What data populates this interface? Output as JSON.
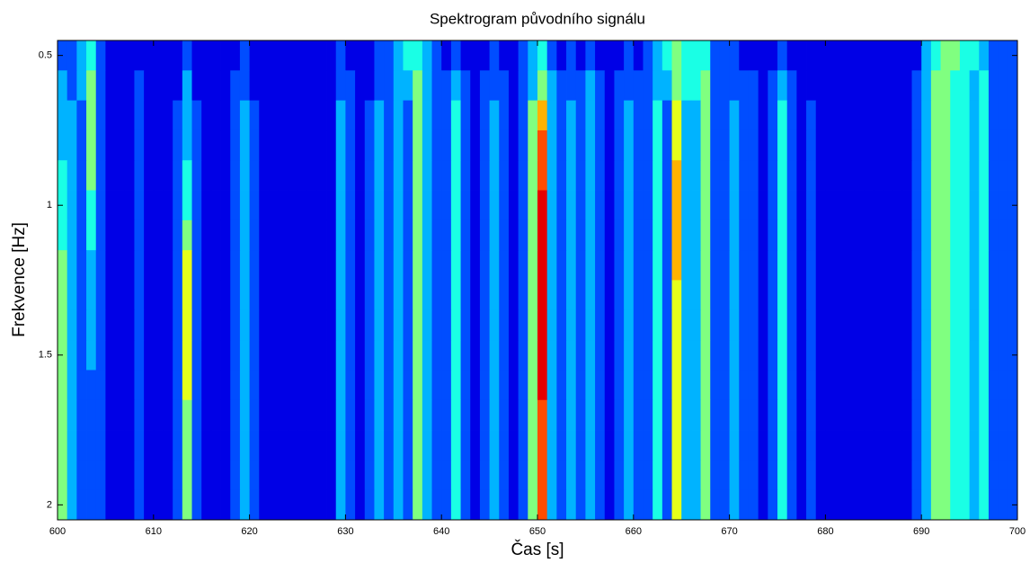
{
  "chart_data": {
    "type": "heatmap",
    "title": "Spektrogram původního signálu",
    "xlabel": "Čas [s]",
    "ylabel": "Frekvence [Hz]",
    "xlim": [
      600,
      700
    ],
    "xticks": [
      600,
      610,
      620,
      630,
      640,
      650,
      660,
      670,
      680,
      690,
      700
    ],
    "ylim": [
      0.45,
      2.05
    ],
    "yticks": [
      0.5,
      1,
      1.5,
      2
    ],
    "y_reversed": true,
    "colormap": "jet",
    "x": [
      600.5,
      601.5,
      602.5,
      603.5,
      604.5,
      605.5,
      606.5,
      607.5,
      608.5,
      609.5,
      610.5,
      611.5,
      612.5,
      613.5,
      614.5,
      615.5,
      616.5,
      617.5,
      618.5,
      619.5,
      620.5,
      621.5,
      622.5,
      623.5,
      624.5,
      625.5,
      626.5,
      627.5,
      628.5,
      629.5,
      630.5,
      631.5,
      632.5,
      633.5,
      634.5,
      635.5,
      636.5,
      637.5,
      638.5,
      639.5,
      640.5,
      641.5,
      642.5,
      643.5,
      644.5,
      645.5,
      646.5,
      647.5,
      648.5,
      649.5,
      650.5,
      651.5,
      652.5,
      653.5,
      654.5,
      655.5,
      656.5,
      657.5,
      658.5,
      659.5,
      660.5,
      661.5,
      662.5,
      663.5,
      664.5,
      665.5,
      666.5,
      667.5,
      668.5,
      669.5,
      670.5,
      671.5,
      672.5,
      673.5,
      674.5,
      675.5,
      676.5,
      677.5,
      678.5,
      679.5,
      680.5,
      681.5,
      682.5,
      683.5,
      684.5,
      685.5,
      686.5,
      687.5,
      688.5,
      689.5,
      690.5,
      691.5,
      692.5,
      693.5,
      694.5,
      695.5,
      696.5,
      697.5,
      698.5,
      699.5
    ],
    "y": [
      0.5,
      0.6,
      0.7,
      0.8,
      0.9,
      1.0,
      1.1,
      1.2,
      1.3,
      1.4,
      1.5,
      1.6,
      1.7,
      1.8,
      1.9,
      2.0
    ],
    "z": [
      [
        2,
        2,
        3,
        4,
        2,
        1,
        1,
        1,
        1,
        1,
        1,
        1,
        1,
        2,
        1,
        1,
        1,
        1,
        1,
        2,
        1,
        1,
        1,
        1,
        1,
        1,
        1,
        1,
        1,
        2,
        1,
        1,
        1,
        2,
        2,
        3,
        4,
        4,
        3,
        2,
        1,
        2,
        1,
        1,
        1,
        2,
        1,
        1,
        2,
        3,
        4,
        2,
        1,
        2,
        1,
        2,
        1,
        1,
        1,
        2,
        1,
        2,
        3,
        4,
        5,
        4,
        4,
        4,
        2,
        2,
        2,
        1,
        1,
        1,
        1,
        2,
        1,
        1,
        1,
        1,
        1,
        1,
        1,
        1,
        1,
        1,
        1,
        1,
        1,
        1,
        3,
        4,
        5,
        5,
        4,
        4,
        3,
        2,
        2,
        2
      ],
      [
        3,
        2,
        3,
        5,
        2,
        1,
        1,
        1,
        2,
        1,
        1,
        1,
        1,
        3,
        1,
        1,
        1,
        1,
        2,
        2,
        1,
        1,
        1,
        1,
        1,
        1,
        1,
        1,
        1,
        2,
        2,
        1,
        1,
        2,
        2,
        3,
        3,
        5,
        3,
        2,
        2,
        3,
        2,
        1,
        2,
        2,
        2,
        1,
        2,
        3,
        5,
        3,
        2,
        2,
        2,
        3,
        2,
        1,
        2,
        2,
        2,
        2,
        3,
        3,
        5,
        4,
        4,
        5,
        2,
        2,
        2,
        2,
        2,
        1,
        2,
        3,
        2,
        1,
        1,
        1,
        1,
        1,
        1,
        1,
        1,
        1,
        1,
        1,
        1,
        2,
        3,
        5,
        5,
        4,
        4,
        3,
        4,
        2,
        2,
        2
      ],
      [
        3,
        3,
        2,
        5,
        2,
        1,
        1,
        1,
        2,
        1,
        1,
        1,
        2,
        3,
        2,
        1,
        1,
        1,
        2,
        3,
        2,
        1,
        1,
        1,
        1,
        1,
        1,
        1,
        1,
        3,
        2,
        1,
        2,
        3,
        2,
        3,
        2,
        5,
        3,
        2,
        2,
        4,
        2,
        1,
        2,
        3,
        2,
        1,
        2,
        5,
        7,
        3,
        2,
        3,
        2,
        3,
        2,
        1,
        2,
        3,
        2,
        2,
        4,
        2,
        6,
        3,
        3,
        5,
        2,
        2,
        3,
        2,
        2,
        1,
        2,
        4,
        2,
        1,
        2,
        1,
        1,
        1,
        1,
        1,
        1,
        1,
        1,
        1,
        1,
        2,
        3,
        5,
        5,
        4,
        4,
        3,
        4,
        2,
        2,
        2
      ],
      [
        3,
        3,
        2,
        5,
        2,
        1,
        1,
        1,
        2,
        1,
        1,
        1,
        2,
        3,
        2,
        1,
        1,
        1,
        2,
        3,
        2,
        1,
        1,
        1,
        1,
        1,
        1,
        1,
        1,
        3,
        2,
        1,
        2,
        3,
        2,
        3,
        2,
        5,
        3,
        2,
        2,
        4,
        2,
        1,
        2,
        3,
        2,
        1,
        2,
        5,
        8,
        3,
        2,
        3,
        2,
        3,
        2,
        1,
        2,
        3,
        2,
        2,
        4,
        2,
        6,
        3,
        3,
        5,
        2,
        2,
        3,
        2,
        2,
        1,
        2,
        4,
        2,
        1,
        2,
        1,
        1,
        1,
        1,
        1,
        1,
        1,
        1,
        1,
        1,
        2,
        3,
        5,
        5,
        4,
        4,
        3,
        4,
        2,
        2,
        2
      ],
      [
        4,
        3,
        2,
        5,
        2,
        1,
        1,
        1,
        2,
        1,
        1,
        1,
        2,
        4,
        2,
        1,
        1,
        1,
        2,
        3,
        2,
        1,
        1,
        1,
        1,
        1,
        1,
        1,
        1,
        3,
        2,
        1,
        2,
        3,
        2,
        3,
        2,
        5,
        3,
        2,
        2,
        4,
        2,
        1,
        2,
        3,
        2,
        1,
        2,
        5,
        8,
        3,
        2,
        3,
        2,
        3,
        2,
        1,
        2,
        3,
        2,
        2,
        4,
        2,
        7,
        3,
        3,
        5,
        2,
        2,
        3,
        2,
        2,
        1,
        2,
        4,
        2,
        1,
        2,
        1,
        1,
        1,
        1,
        1,
        1,
        1,
        1,
        1,
        1,
        2,
        3,
        5,
        5,
        4,
        4,
        3,
        4,
        2,
        2,
        2
      ],
      [
        4,
        3,
        2,
        4,
        2,
        1,
        1,
        1,
        2,
        1,
        1,
        1,
        2,
        4,
        2,
        1,
        1,
        1,
        2,
        3,
        2,
        1,
        1,
        1,
        1,
        1,
        1,
        1,
        1,
        3,
        2,
        1,
        2,
        3,
        2,
        3,
        2,
        5,
        3,
        2,
        2,
        4,
        2,
        1,
        2,
        3,
        2,
        1,
        2,
        5,
        9,
        3,
        2,
        3,
        2,
        3,
        2,
        1,
        2,
        3,
        2,
        2,
        4,
        2,
        7,
        3,
        3,
        5,
        2,
        2,
        3,
        2,
        2,
        1,
        2,
        4,
        2,
        1,
        2,
        1,
        1,
        1,
        1,
        1,
        1,
        1,
        1,
        1,
        1,
        2,
        3,
        5,
        5,
        4,
        4,
        3,
        4,
        2,
        2,
        2
      ],
      [
        4,
        3,
        2,
        4,
        2,
        1,
        1,
        1,
        2,
        1,
        1,
        1,
        2,
        5,
        2,
        1,
        1,
        1,
        2,
        3,
        2,
        1,
        1,
        1,
        1,
        1,
        1,
        1,
        1,
        3,
        2,
        1,
        2,
        3,
        2,
        3,
        2,
        5,
        3,
        2,
        2,
        4,
        2,
        1,
        2,
        3,
        2,
        1,
        2,
        5,
        9,
        3,
        2,
        3,
        2,
        3,
        2,
        1,
        2,
        3,
        2,
        2,
        4,
        2,
        7,
        3,
        3,
        5,
        2,
        2,
        3,
        2,
        2,
        1,
        2,
        4,
        2,
        1,
        2,
        1,
        1,
        1,
        1,
        1,
        1,
        1,
        1,
        1,
        1,
        2,
        3,
        5,
        5,
        4,
        4,
        3,
        4,
        2,
        2,
        2
      ],
      [
        5,
        3,
        2,
        3,
        2,
        1,
        1,
        1,
        2,
        1,
        1,
        1,
        2,
        6,
        2,
        1,
        1,
        1,
        2,
        3,
        2,
        1,
        1,
        1,
        1,
        1,
        1,
        1,
        1,
        3,
        2,
        1,
        2,
        3,
        2,
        3,
        2,
        5,
        3,
        2,
        2,
        4,
        2,
        1,
        2,
        3,
        2,
        1,
        2,
        5,
        9,
        3,
        2,
        3,
        2,
        3,
        2,
        1,
        2,
        3,
        2,
        2,
        4,
        2,
        7,
        3,
        3,
        5,
        2,
        2,
        3,
        2,
        2,
        1,
        2,
        4,
        2,
        1,
        2,
        1,
        1,
        1,
        1,
        1,
        1,
        1,
        1,
        1,
        1,
        2,
        3,
        5,
        5,
        4,
        4,
        3,
        4,
        2,
        2,
        2
      ],
      [
        5,
        3,
        2,
        3,
        2,
        1,
        1,
        1,
        2,
        1,
        1,
        1,
        2,
        6,
        2,
        1,
        1,
        1,
        2,
        3,
        2,
        1,
        1,
        1,
        1,
        1,
        1,
        1,
        1,
        3,
        2,
        1,
        2,
        3,
        2,
        3,
        2,
        5,
        3,
        2,
        2,
        4,
        2,
        1,
        2,
        3,
        2,
        1,
        2,
        5,
        9,
        3,
        2,
        3,
        2,
        3,
        2,
        1,
        2,
        3,
        2,
        2,
        4,
        2,
        6,
        3,
        3,
        5,
        2,
        2,
        3,
        2,
        2,
        1,
        2,
        4,
        2,
        1,
        2,
        1,
        1,
        1,
        1,
        1,
        1,
        1,
        1,
        1,
        1,
        2,
        3,
        5,
        5,
        4,
        4,
        3,
        4,
        2,
        2,
        2
      ],
      [
        5,
        3,
        2,
        3,
        2,
        1,
        1,
        1,
        2,
        1,
        1,
        1,
        2,
        6,
        2,
        1,
        1,
        1,
        2,
        3,
        2,
        1,
        1,
        1,
        1,
        1,
        1,
        1,
        1,
        3,
        2,
        1,
        2,
        3,
        2,
        3,
        2,
        5,
        3,
        2,
        2,
        4,
        2,
        1,
        2,
        3,
        2,
        1,
        2,
        5,
        9,
        3,
        2,
        3,
        2,
        3,
        2,
        1,
        2,
        3,
        2,
        2,
        4,
        2,
        6,
        3,
        3,
        5,
        2,
        2,
        3,
        2,
        2,
        1,
        2,
        4,
        2,
        1,
        2,
        1,
        1,
        1,
        1,
        1,
        1,
        1,
        1,
        1,
        1,
        2,
        3,
        5,
        5,
        4,
        4,
        3,
        4,
        2,
        2,
        2
      ],
      [
        5,
        3,
        2,
        3,
        2,
        1,
        1,
        1,
        2,
        1,
        1,
        1,
        2,
        6,
        2,
        1,
        1,
        1,
        2,
        3,
        2,
        1,
        1,
        1,
        1,
        1,
        1,
        1,
        1,
        3,
        2,
        1,
        2,
        3,
        2,
        3,
        2,
        5,
        3,
        2,
        2,
        4,
        2,
        1,
        2,
        3,
        2,
        1,
        2,
        5,
        9,
        3,
        2,
        3,
        2,
        3,
        2,
        1,
        2,
        3,
        2,
        2,
        4,
        2,
        6,
        3,
        3,
        5,
        2,
        2,
        3,
        2,
        2,
        1,
        2,
        4,
        2,
        1,
        2,
        1,
        1,
        1,
        1,
        1,
        1,
        1,
        1,
        1,
        1,
        2,
        3,
        5,
        5,
        4,
        4,
        3,
        4,
        2,
        2,
        2
      ],
      [
        5,
        3,
        2,
        2,
        2,
        1,
        1,
        1,
        2,
        1,
        1,
        1,
        2,
        6,
        2,
        1,
        1,
        1,
        2,
        3,
        2,
        1,
        1,
        1,
        1,
        1,
        1,
        1,
        1,
        3,
        2,
        1,
        2,
        3,
        2,
        3,
        2,
        5,
        3,
        2,
        2,
        4,
        2,
        1,
        2,
        3,
        2,
        1,
        2,
        5,
        9,
        3,
        2,
        3,
        2,
        3,
        2,
        1,
        2,
        3,
        2,
        2,
        4,
        2,
        6,
        3,
        3,
        5,
        2,
        2,
        3,
        2,
        2,
        1,
        2,
        4,
        2,
        1,
        2,
        1,
        1,
        1,
        1,
        1,
        1,
        1,
        1,
        1,
        1,
        2,
        3,
        5,
        5,
        4,
        4,
        3,
        4,
        2,
        2,
        2
      ],
      [
        5,
        3,
        2,
        2,
        2,
        1,
        1,
        1,
        2,
        1,
        1,
        1,
        2,
        5,
        2,
        1,
        1,
        1,
        2,
        3,
        2,
        1,
        1,
        1,
        1,
        1,
        1,
        1,
        1,
        3,
        2,
        1,
        2,
        3,
        2,
        3,
        2,
        5,
        3,
        2,
        2,
        4,
        2,
        1,
        2,
        3,
        2,
        1,
        2,
        5,
        8,
        3,
        2,
        3,
        2,
        3,
        2,
        1,
        2,
        3,
        2,
        2,
        4,
        2,
        6,
        3,
        3,
        5,
        2,
        2,
        3,
        2,
        2,
        1,
        2,
        4,
        2,
        1,
        2,
        1,
        1,
        1,
        1,
        1,
        1,
        1,
        1,
        1,
        1,
        2,
        3,
        5,
        5,
        4,
        4,
        3,
        4,
        2,
        2,
        2
      ],
      [
        5,
        3,
        2,
        2,
        2,
        1,
        1,
        1,
        2,
        1,
        1,
        1,
        2,
        5,
        2,
        1,
        1,
        1,
        2,
        3,
        2,
        1,
        1,
        1,
        1,
        1,
        1,
        1,
        1,
        3,
        2,
        1,
        2,
        3,
        2,
        3,
        2,
        5,
        3,
        2,
        2,
        4,
        2,
        1,
        2,
        3,
        2,
        1,
        2,
        5,
        8,
        3,
        2,
        3,
        2,
        3,
        2,
        1,
        2,
        3,
        2,
        2,
        4,
        2,
        6,
        3,
        3,
        5,
        2,
        2,
        3,
        2,
        2,
        1,
        2,
        4,
        2,
        1,
        2,
        1,
        1,
        1,
        1,
        1,
        1,
        1,
        1,
        1,
        1,
        2,
        3,
        5,
        5,
        4,
        4,
        3,
        4,
        2,
        2,
        2
      ],
      [
        5,
        3,
        2,
        2,
        2,
        1,
        1,
        1,
        2,
        1,
        1,
        1,
        2,
        5,
        2,
        1,
        1,
        1,
        2,
        3,
        2,
        1,
        1,
        1,
        1,
        1,
        1,
        1,
        1,
        3,
        2,
        1,
        2,
        3,
        2,
        3,
        2,
        5,
        3,
        2,
        2,
        4,
        2,
        1,
        2,
        3,
        2,
        1,
        2,
        5,
        8,
        3,
        2,
        3,
        2,
        3,
        2,
        1,
        2,
        3,
        2,
        2,
        4,
        2,
        6,
        3,
        3,
        5,
        2,
        2,
        3,
        2,
        2,
        1,
        2,
        4,
        2,
        1,
        2,
        1,
        1,
        1,
        1,
        1,
        1,
        1,
        1,
        1,
        1,
        2,
        3,
        5,
        5,
        4,
        4,
        3,
        4,
        2,
        2,
        2
      ],
      [
        5,
        3,
        2,
        2,
        2,
        1,
        1,
        1,
        2,
        1,
        1,
        1,
        2,
        5,
        2,
        1,
        1,
        1,
        2,
        3,
        2,
        1,
        1,
        1,
        1,
        1,
        1,
        1,
        1,
        3,
        2,
        1,
        2,
        3,
        2,
        3,
        2,
        5,
        3,
        2,
        2,
        4,
        2,
        1,
        2,
        3,
        2,
        1,
        2,
        5,
        8,
        3,
        2,
        3,
        2,
        3,
        2,
        1,
        2,
        3,
        2,
        2,
        4,
        2,
        6,
        3,
        3,
        5,
        2,
        2,
        3,
        2,
        2,
        1,
        2,
        4,
        2,
        1,
        2,
        1,
        1,
        1,
        1,
        1,
        1,
        1,
        1,
        1,
        1,
        2,
        3,
        5,
        5,
        4,
        4,
        3,
        4,
        2,
        2,
        2
      ]
    ]
  }
}
